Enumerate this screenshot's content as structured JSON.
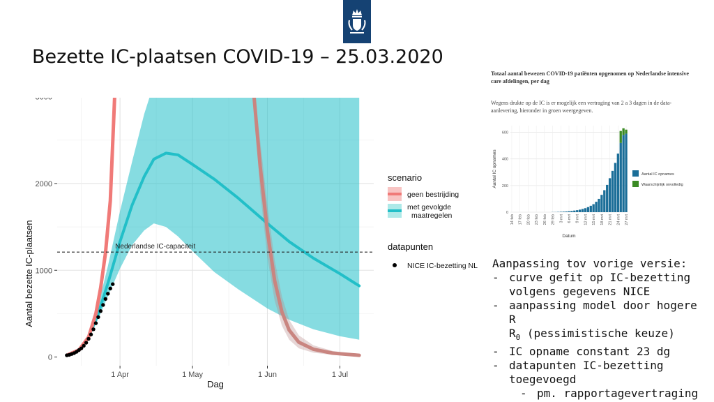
{
  "slide": {
    "title": "Bezette IC-plaatsen COVID-19 – 25.03.2020"
  },
  "colors": {
    "logo_bg": "#154273",
    "red": "#f07a78",
    "red_band": "#f8c4c3",
    "cyan": "#22bfc8",
    "cyan_band": "#aee9e8",
    "bar_blue": "#1b6e98",
    "bar_green": "#3a8a23"
  },
  "chart_data": [
    {
      "type": "line",
      "title": "",
      "xlabel": "Dag",
      "ylabel": "Aantal bezette IC-plaatsen",
      "xlim": [
        "2020-03-06",
        "2020-07-15"
      ],
      "ylim": [
        -100,
        3150
      ],
      "x_ticks": [
        {
          "date": "2020-04-01",
          "label": "1 Apr"
        },
        {
          "date": "2020-05-01",
          "label": "1 May"
        },
        {
          "date": "2020-06-01",
          "label": "1 Jun"
        },
        {
          "date": "2020-07-01",
          "label": "1 Jul"
        }
      ],
      "y_ticks": [
        {
          "value": 0,
          "label": "0"
        },
        {
          "value": 1000,
          "label": "1000"
        },
        {
          "value": 2000,
          "label": "2000"
        },
        {
          "value": 3000,
          "label": "3000"
        }
      ],
      "grid": true,
      "reference_line": {
        "value": 1210,
        "label": "Nederlandse IC-capaciteit"
      },
      "legend_scenario": {
        "title": "scenario",
        "items": [
          "geen bestrijding",
          "met gevolgde maatregelen"
        ]
      },
      "legend_data": {
        "title": "datapunten",
        "items": [
          "NICE IC-bezetting NL"
        ]
      },
      "series": [
        {
          "name": "geen bestrijding",
          "x": [
            "2020-03-10",
            "2020-03-15",
            "2020-03-19",
            "2020-03-22",
            "2020-03-24",
            "2020-03-26",
            "2020-03-28",
            "2020-03-30"
          ],
          "y": [
            20,
            80,
            230,
            500,
            800,
            1200,
            1800,
            3150
          ],
          "lower": [
            20,
            75,
            210,
            450,
            720,
            1080,
            1600,
            2700
          ],
          "upper": [
            20,
            90,
            260,
            560,
            880,
            1340,
            2000,
            3150
          ]
        },
        {
          "name": "geen bestrijding",
          "x": [
            "2020-05-26",
            "2020-05-29",
            "2020-06-01",
            "2020-06-04",
            "2020-06-07",
            "2020-06-10",
            "2020-06-14",
            "2020-06-20",
            "2020-06-28",
            "2020-07-09"
          ],
          "y": [
            3150,
            2200,
            1450,
            880,
            520,
            310,
            170,
            90,
            45,
            20
          ],
          "lower": [
            3150,
            1900,
            1150,
            650,
            360,
            200,
            100,
            50,
            25,
            10
          ],
          "upper": [
            3150,
            2500,
            1750,
            1120,
            700,
            430,
            250,
            135,
            70,
            30
          ]
        },
        {
          "name": "met gevolgde maatregelen",
          "x": [
            "2020-03-10",
            "2020-03-15",
            "2020-03-19",
            "2020-03-23",
            "2020-03-27",
            "2020-04-01",
            "2020-04-06",
            "2020-04-11",
            "2020-04-15",
            "2020-04-20",
            "2020-04-25",
            "2020-05-01",
            "2020-05-10",
            "2020-05-20",
            "2020-06-01",
            "2020-06-10",
            "2020-06-20",
            "2020-07-01",
            "2020-07-09"
          ],
          "y": [
            20,
            80,
            230,
            500,
            850,
            1330,
            1750,
            2080,
            2280,
            2350,
            2330,
            2220,
            2050,
            1830,
            1540,
            1330,
            1140,
            960,
            820
          ],
          "lower": [
            20,
            75,
            210,
            440,
            700,
            1020,
            1290,
            1460,
            1540,
            1500,
            1390,
            1220,
            980,
            780,
            560,
            430,
            320,
            240,
            200
          ],
          "upper": [
            20,
            90,
            260,
            600,
            1050,
            1680,
            2250,
            2800,
            3150,
            3150,
            3150,
            3150,
            3150,
            3150,
            3150,
            3150,
            3150,
            3150,
            3150
          ]
        },
        {
          "name": "NICE IC-bezetting NL",
          "x": [
            "2020-03-10",
            "2020-03-11",
            "2020-03-12",
            "2020-03-13",
            "2020-03-14",
            "2020-03-15",
            "2020-03-16",
            "2020-03-17",
            "2020-03-18",
            "2020-03-19",
            "2020-03-20",
            "2020-03-21",
            "2020-03-22",
            "2020-03-23",
            "2020-03-24",
            "2020-03-25",
            "2020-03-26",
            "2020-03-27",
            "2020-03-28",
            "2020-03-29"
          ],
          "y": [
            20,
            25,
            35,
            45,
            60,
            80,
            100,
            130,
            165,
            210,
            260,
            320,
            390,
            460,
            530,
            600,
            670,
            730,
            790,
            840
          ]
        }
      ]
    },
    {
      "type": "bar",
      "title": "Totaal aantal bewezen COVID-19 patiënten opgenomen op Nederlandse intensive care afdelingen, per dag",
      "subtitle": "Wegens drukte op de IC is er mogelijk een vertraging van 2 a 3 dagen in de data-aanlevering, hieronder in groen weergegeven.",
      "xlabel": "Datum",
      "ylabel": "Aantal IC opnames",
      "ylim": [
        0,
        650
      ],
      "y_ticks": [
        0,
        200,
        400,
        600
      ],
      "x_tick_labels": [
        "14 feb",
        "17 feb",
        "20 feb",
        "23 feb",
        "26 feb",
        "29 feb",
        "3 mrt",
        "6 mrt",
        "9 mrt",
        "12 mrt",
        "15 mrt",
        "18 mrt",
        "21 mrt",
        "24 mrt",
        "27 mrt"
      ],
      "categories": [
        "14 feb",
        "15 feb",
        "16 feb",
        "17 feb",
        "18 feb",
        "19 feb",
        "20 feb",
        "21 feb",
        "22 feb",
        "23 feb",
        "24 feb",
        "25 feb",
        "26 feb",
        "27 feb",
        "28 feb",
        "29 feb",
        "1 mrt",
        "2 mrt",
        "3 mrt",
        "4 mrt",
        "5 mrt",
        "6 mrt",
        "7 mrt",
        "8 mrt",
        "9 mrt",
        "10 mrt",
        "11 mrt",
        "12 mrt",
        "13 mrt",
        "14 mrt",
        "15 mrt",
        "16 mrt",
        "17 mrt",
        "18 mrt",
        "19 mrt",
        "20 mrt",
        "21 mrt",
        "22 mrt",
        "23 mrt",
        "24 mrt",
        "25 mrt",
        "26 mrt",
        "27 mrt"
      ],
      "series": [
        {
          "name": "Aantal IC opnames",
          "values": [
            0,
            0,
            0,
            0,
            0,
            0,
            0,
            0,
            0,
            0,
            0,
            0,
            0,
            0,
            0,
            1,
            1,
            2,
            3,
            4,
            5,
            7,
            9,
            12,
            15,
            19,
            24,
            30,
            38,
            48,
            60,
            78,
            100,
            130,
            165,
            205,
            255,
            310,
            370,
            440,
            520,
            580,
            590
          ]
        },
        {
          "name": "Waarschijnlijk onvolledig",
          "values": [
            0,
            0,
            0,
            0,
            0,
            0,
            0,
            0,
            0,
            0,
            0,
            0,
            0,
            0,
            0,
            0,
            0,
            0,
            0,
            0,
            0,
            0,
            0,
            0,
            0,
            0,
            0,
            0,
            0,
            0,
            0,
            0,
            0,
            0,
            0,
            0,
            0,
            0,
            0,
            0,
            90,
            50,
            30
          ]
        }
      ]
    }
  ],
  "notes": {
    "heading": "Aanpassing tov vorige versie:",
    "items": [
      "curve gefit op IC-bezetting volgens gegevens NICE",
      "aanpassing model door hogere R",
      "IC opname constant 23 dg",
      "datapunten IC-bezetting toegevoegd"
    ],
    "r_subscript": "0",
    "r_suffix": " (pessimistische keuze)",
    "subitem": "pm. rapportagevertraging"
  }
}
